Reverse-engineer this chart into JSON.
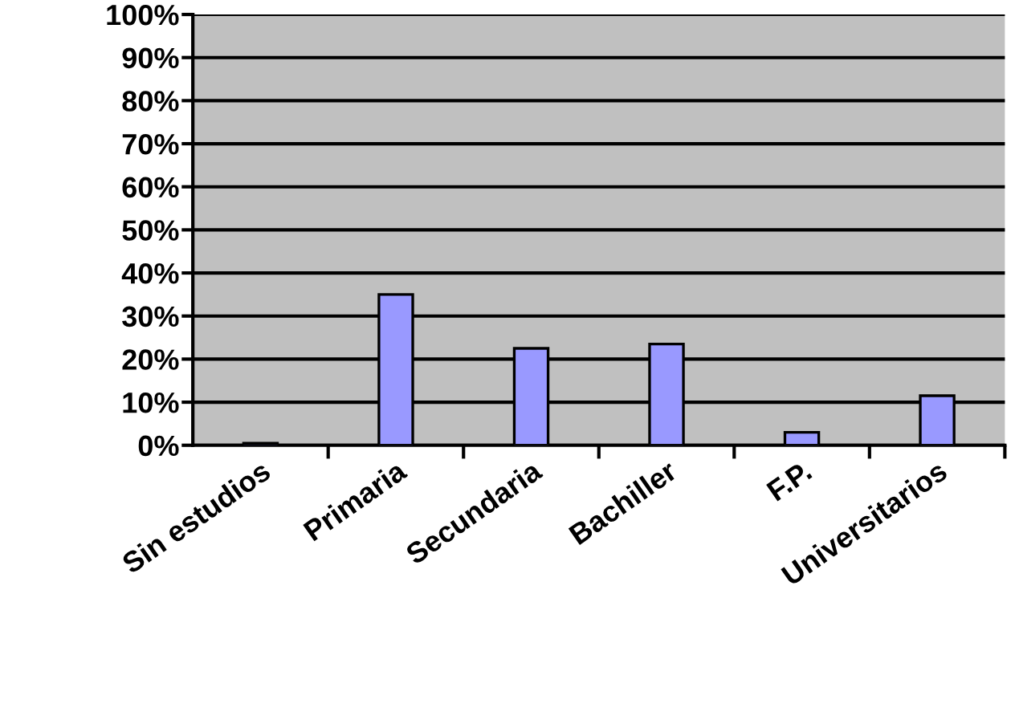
{
  "chart_data": {
    "type": "bar",
    "categories": [
      "Sin estudios",
      "Primaria",
      "Secundaria",
      "Bachiller",
      "F.P.",
      "Universitarios"
    ],
    "values": [
      0.5,
      35,
      22.5,
      23.5,
      3,
      11.5
    ],
    "color": "#9999ff",
    "ylim": [
      0,
      100
    ],
    "yticks": [
      {
        "value": 0,
        "label": "0%"
      },
      {
        "value": 10,
        "label": "10%"
      },
      {
        "value": 20,
        "label": "20%"
      },
      {
        "value": 30,
        "label": "30%"
      },
      {
        "value": 40,
        "label": "40%"
      },
      {
        "value": 50,
        "label": "50%"
      },
      {
        "value": 60,
        "label": "60%"
      },
      {
        "value": 70,
        "label": "70%"
      },
      {
        "value": 80,
        "label": "80%"
      },
      {
        "value": 90,
        "label": "90%"
      },
      {
        "value": 100,
        "label": "100%"
      }
    ],
    "grid": "y",
    "legend": false
  }
}
